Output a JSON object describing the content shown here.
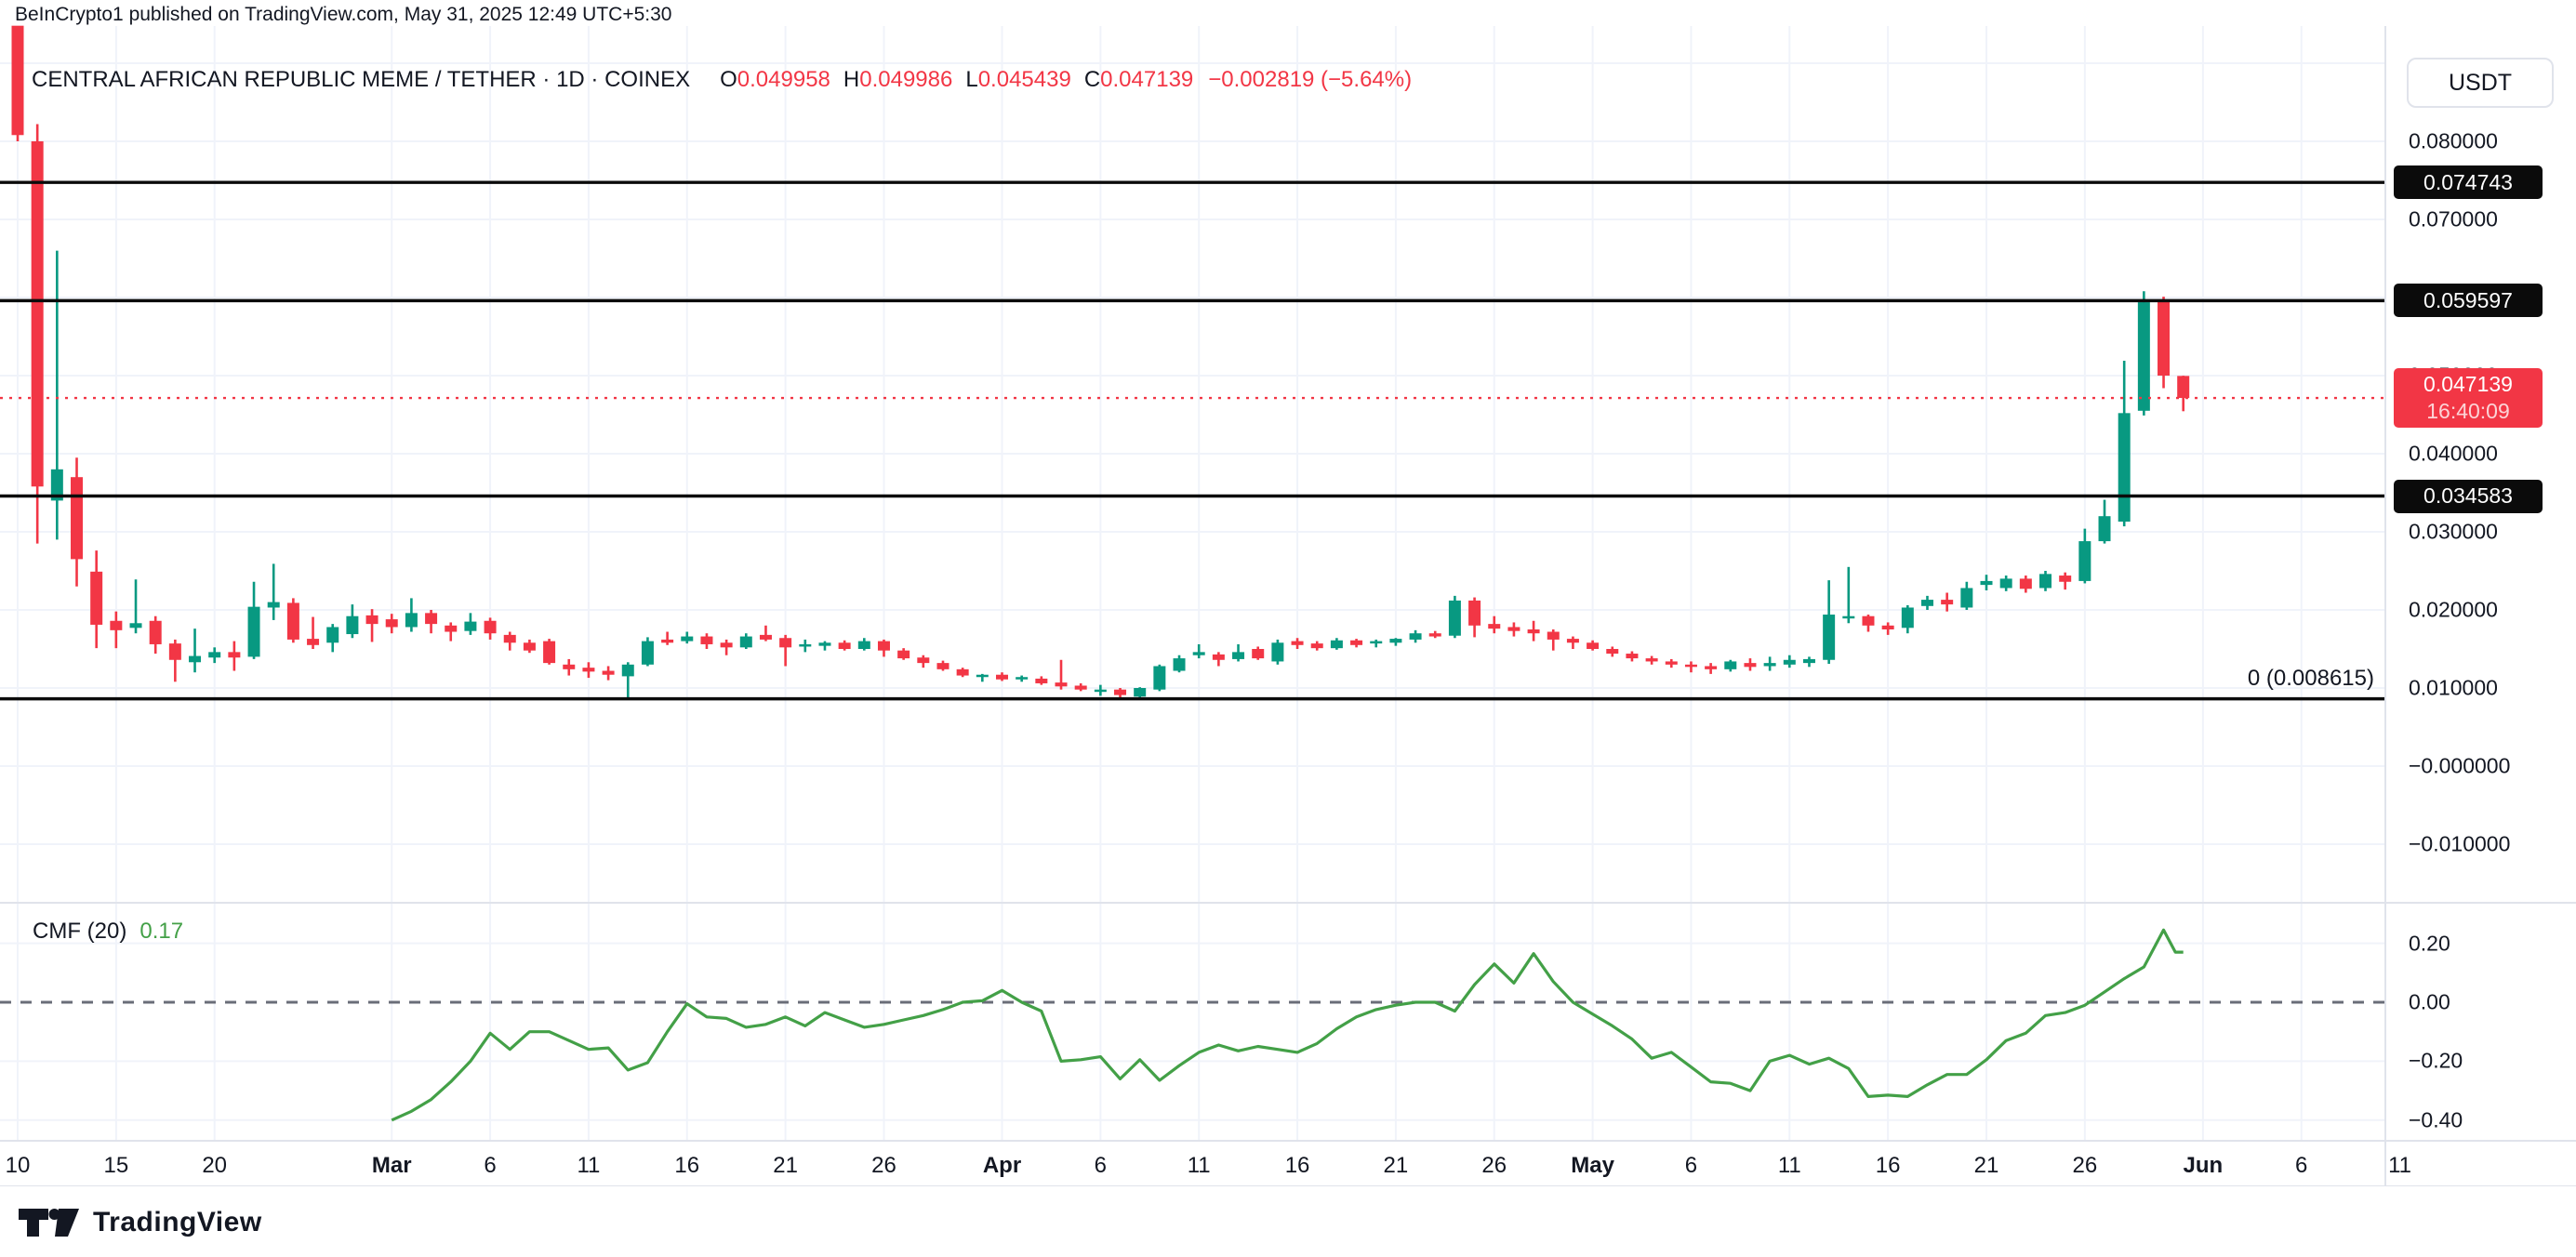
{
  "header": {
    "attribution": "BeInCrypto1 published on TradingView.com, May 31, 2025 12:49 UTC+5:30"
  },
  "symbol_bar": {
    "title": "CENTRAL AFRICAN REPUBLIC MEME / TETHER · 1D · COINEX",
    "o_label": "O",
    "o_value": "0.049958",
    "h_label": "H",
    "h_value": "0.049986",
    "l_label": "L",
    "l_value": "0.045439",
    "c_label": "C",
    "c_value": "0.047139",
    "change": "−0.002819 (−5.64%)"
  },
  "legend": {
    "cmf_label": "CMF (20)",
    "cmf_value": "0.17"
  },
  "price_axis": {
    "currency_button": "USDT",
    "ticks": [
      {
        "label": "0.080000",
        "p": 0.08
      },
      {
        "label": "0.070000",
        "p": 0.07
      },
      {
        "label": "0.050000",
        "p": 0.05
      },
      {
        "label": "0.040000",
        "p": 0.04
      },
      {
        "label": "0.030000",
        "p": 0.03
      },
      {
        "label": "0.020000",
        "p": 0.02
      },
      {
        "label": "0.010000",
        "p": 0.01
      },
      {
        "label": "−0.000000",
        "p": 0.0
      },
      {
        "label": "−0.010000",
        "p": -0.01
      }
    ],
    "cmf_ticks": [
      {
        "label": "0.20",
        "v": 0.2
      },
      {
        "label": "0.00",
        "v": 0.0
      },
      {
        "label": "−0.20",
        "v": -0.2
      },
      {
        "label": "−0.40",
        "v": -0.4
      }
    ]
  },
  "time_axis": {
    "ticks": [
      {
        "i": 0,
        "label": "10"
      },
      {
        "i": 5,
        "label": "15"
      },
      {
        "i": 10,
        "label": "20"
      },
      {
        "i": 19,
        "label": "Mar",
        "bold": true
      },
      {
        "i": 24,
        "label": "6"
      },
      {
        "i": 29,
        "label": "11"
      },
      {
        "i": 34,
        "label": "16"
      },
      {
        "i": 39,
        "label": "21"
      },
      {
        "i": 44,
        "label": "26"
      },
      {
        "i": 50,
        "label": "Apr",
        "bold": true
      },
      {
        "i": 55,
        "label": "6"
      },
      {
        "i": 60,
        "label": "11"
      },
      {
        "i": 65,
        "label": "16"
      },
      {
        "i": 70,
        "label": "21"
      },
      {
        "i": 75,
        "label": "26"
      },
      {
        "i": 80,
        "label": "May",
        "bold": true
      },
      {
        "i": 85,
        "label": "6"
      },
      {
        "i": 90,
        "label": "11"
      },
      {
        "i": 95,
        "label": "16"
      },
      {
        "i": 100,
        "label": "21"
      },
      {
        "i": 105,
        "label": "26"
      },
      {
        "i": 111,
        "label": "Jun",
        "bold": true
      },
      {
        "i": 116,
        "label": "6"
      },
      {
        "i": 121,
        "label": "11"
      }
    ]
  },
  "footer": {
    "logo_text": "TradingView"
  },
  "colors": {
    "up": "#089981",
    "down": "#F23645",
    "cmf_line": "#43A047",
    "grid": "#F0F3FA",
    "border": "#E0E3EB",
    "text": "#131722",
    "level_line": "#0b0b0b",
    "zero_dash": "#6A6D78",
    "current_dotted": "#F23645"
  },
  "chart_data": {
    "type": "candlestick",
    "title": "CENTRAL AFRICAN REPUBLIC MEME / TETHER",
    "interval": "1D",
    "exchange": "COINEX",
    "x_start_date": "Feb 10, 2025",
    "x_end_date": "May 31, 2025",
    "ylim": [
      -0.015,
      0.0948
    ],
    "grid": true,
    "horizontal_levels": [
      {
        "label": "0.074743",
        "p": 0.074743,
        "badge": true
      },
      {
        "label": "0.059597",
        "p": 0.059597,
        "badge": true
      },
      {
        "label": "0.034583",
        "p": 0.034583,
        "badge": true
      },
      {
        "label": "0 (0.008615)",
        "p": 0.008615,
        "badge": false
      }
    ],
    "current_price": {
      "label": "0.047139",
      "p": 0.047139,
      "countdown": "16:40:09"
    },
    "candles_ohlc": [
      [
        0.0948,
        0.0948,
        0.08,
        0.0808
      ],
      [
        0.08,
        0.0822,
        0.0285,
        0.0358
      ],
      [
        0.034,
        0.066,
        0.029,
        0.038
      ],
      [
        0.037,
        0.0395,
        0.023,
        0.0265
      ],
      [
        0.0249,
        0.0276,
        0.0151,
        0.0181
      ],
      [
        0.0186,
        0.0198,
        0.0151,
        0.0174
      ],
      [
        0.0177,
        0.0239,
        0.017,
        0.0183
      ],
      [
        0.0186,
        0.0192,
        0.0144,
        0.0156
      ],
      [
        0.0157,
        0.0162,
        0.0108,
        0.0136
      ],
      [
        0.0133,
        0.0176,
        0.012,
        0.0141
      ],
      [
        0.0139,
        0.0152,
        0.0132,
        0.0146
      ],
      [
        0.0146,
        0.016,
        0.0122,
        0.0139
      ],
      [
        0.014,
        0.0236,
        0.0137,
        0.0204
      ],
      [
        0.0203,
        0.0259,
        0.0187,
        0.021
      ],
      [
        0.0209,
        0.0215,
        0.0158,
        0.0162
      ],
      [
        0.0163,
        0.0191,
        0.015,
        0.0155
      ],
      [
        0.0158,
        0.0182,
        0.0146,
        0.0178
      ],
      [
        0.0169,
        0.0207,
        0.0164,
        0.0192
      ],
      [
        0.0193,
        0.0201,
        0.0159,
        0.0182
      ],
      [
        0.0188,
        0.0195,
        0.017,
        0.0178
      ],
      [
        0.0178,
        0.0215,
        0.0172,
        0.0196
      ],
      [
        0.0196,
        0.02,
        0.017,
        0.0182
      ],
      [
        0.018,
        0.0184,
        0.016,
        0.0172
      ],
      [
        0.0173,
        0.0196,
        0.0168,
        0.0185
      ],
      [
        0.0186,
        0.019,
        0.0162,
        0.017
      ],
      [
        0.0168,
        0.0172,
        0.0148,
        0.0158
      ],
      [
        0.0158,
        0.0162,
        0.0145,
        0.0148
      ],
      [
        0.016,
        0.0163,
        0.013,
        0.0132
      ],
      [
        0.013,
        0.0137,
        0.0116,
        0.0124
      ],
      [
        0.0126,
        0.0133,
        0.0113,
        0.0121
      ],
      [
        0.0122,
        0.0128,
        0.011,
        0.0117
      ],
      [
        0.0115,
        0.0133,
        0.0086,
        0.013
      ],
      [
        0.013,
        0.0165,
        0.0128,
        0.016
      ],
      [
        0.0162,
        0.0172,
        0.0155,
        0.0158
      ],
      [
        0.016,
        0.0172,
        0.0157,
        0.0166
      ],
      [
        0.0166,
        0.017,
        0.015,
        0.0156
      ],
      [
        0.0158,
        0.0162,
        0.0142,
        0.0152
      ],
      [
        0.0152,
        0.017,
        0.015,
        0.0166
      ],
      [
        0.0168,
        0.018,
        0.016,
        0.0162
      ],
      [
        0.0164,
        0.0168,
        0.0128,
        0.0152
      ],
      [
        0.0153,
        0.0162,
        0.0146,
        0.0156
      ],
      [
        0.0154,
        0.016,
        0.0148,
        0.0158
      ],
      [
        0.0158,
        0.0161,
        0.0148,
        0.015
      ],
      [
        0.015,
        0.0164,
        0.0148,
        0.016
      ],
      [
        0.016,
        0.0162,
        0.014,
        0.0148
      ],
      [
        0.0148,
        0.0151,
        0.0136,
        0.0138
      ],
      [
        0.0139,
        0.0142,
        0.0126,
        0.0132
      ],
      [
        0.0132,
        0.0135,
        0.0122,
        0.0124
      ],
      [
        0.0124,
        0.0126,
        0.0114,
        0.0116
      ],
      [
        0.0114,
        0.0118,
        0.0108,
        0.0117
      ],
      [
        0.0117,
        0.012,
        0.0109,
        0.0111
      ],
      [
        0.0111,
        0.0116,
        0.0108,
        0.0114
      ],
      [
        0.0112,
        0.0115,
        0.0104,
        0.0106
      ],
      [
        0.0107,
        0.0136,
        0.0098,
        0.0102
      ],
      [
        0.0103,
        0.0106,
        0.0096,
        0.0098
      ],
      [
        0.0096,
        0.0104,
        0.009,
        0.0098
      ],
      [
        0.0098,
        0.01,
        0.0088,
        0.0091
      ],
      [
        0.0089,
        0.0101,
        0.0085,
        0.01
      ],
      [
        0.0098,
        0.013,
        0.0096,
        0.0128
      ],
      [
        0.0122,
        0.0142,
        0.012,
        0.0138
      ],
      [
        0.0142,
        0.0156,
        0.0138,
        0.0146
      ],
      [
        0.0143,
        0.0146,
        0.0128,
        0.0136
      ],
      [
        0.0137,
        0.0156,
        0.0134,
        0.0146
      ],
      [
        0.015,
        0.0153,
        0.0136,
        0.0138
      ],
      [
        0.0134,
        0.0162,
        0.013,
        0.0158
      ],
      [
        0.016,
        0.0164,
        0.015,
        0.0155
      ],
      [
        0.0157,
        0.016,
        0.0148,
        0.0151
      ],
      [
        0.0151,
        0.0164,
        0.0149,
        0.0161
      ],
      [
        0.0161,
        0.0163,
        0.0152,
        0.0155
      ],
      [
        0.0157,
        0.0162,
        0.0152,
        0.016
      ],
      [
        0.0158,
        0.0164,
        0.0154,
        0.0163
      ],
      [
        0.0162,
        0.0174,
        0.0158,
        0.017
      ],
      [
        0.017,
        0.0173,
        0.0164,
        0.0166
      ],
      [
        0.0167,
        0.0218,
        0.0164,
        0.0212
      ],
      [
        0.0212,
        0.0216,
        0.0165,
        0.018
      ],
      [
        0.0182,
        0.0192,
        0.017,
        0.0176
      ],
      [
        0.0178,
        0.0184,
        0.0166,
        0.0173
      ],
      [
        0.0175,
        0.0186,
        0.016,
        0.017
      ],
      [
        0.0172,
        0.0175,
        0.0148,
        0.0162
      ],
      [
        0.0163,
        0.0166,
        0.015,
        0.0158
      ],
      [
        0.0158,
        0.0161,
        0.0148,
        0.015
      ],
      [
        0.015,
        0.0153,
        0.014,
        0.0144
      ],
      [
        0.0144,
        0.0147,
        0.0134,
        0.0138
      ],
      [
        0.0138,
        0.0141,
        0.013,
        0.0134
      ],
      [
        0.0134,
        0.0137,
        0.0126,
        0.013
      ],
      [
        0.013,
        0.0134,
        0.012,
        0.0127
      ],
      [
        0.0128,
        0.0132,
        0.0118,
        0.0124
      ],
      [
        0.0124,
        0.0136,
        0.0121,
        0.0134
      ],
      [
        0.0132,
        0.0138,
        0.0122,
        0.0127
      ],
      [
        0.0128,
        0.014,
        0.0122,
        0.0132
      ],
      [
        0.013,
        0.0142,
        0.0126,
        0.0136
      ],
      [
        0.0132,
        0.014,
        0.0127,
        0.0137
      ],
      [
        0.0136,
        0.0238,
        0.0131,
        0.0194
      ],
      [
        0.019,
        0.0255,
        0.0183,
        0.0192
      ],
      [
        0.0192,
        0.0194,
        0.0172,
        0.018
      ],
      [
        0.018,
        0.0184,
        0.0168,
        0.0175
      ],
      [
        0.0177,
        0.0206,
        0.017,
        0.0203
      ],
      [
        0.0205,
        0.0218,
        0.02,
        0.0213
      ],
      [
        0.0213,
        0.0222,
        0.0198,
        0.0207
      ],
      [
        0.0203,
        0.0236,
        0.02,
        0.0228
      ],
      [
        0.0232,
        0.0245,
        0.0225,
        0.0237
      ],
      [
        0.0228,
        0.0244,
        0.0224,
        0.024
      ],
      [
        0.024,
        0.0244,
        0.0222,
        0.0227
      ],
      [
        0.0228,
        0.025,
        0.0224,
        0.0246
      ],
      [
        0.0244,
        0.0248,
        0.0226,
        0.0236
      ],
      [
        0.0237,
        0.0304,
        0.0234,
        0.0288
      ],
      [
        0.0288,
        0.0341,
        0.0285,
        0.032
      ],
      [
        0.0313,
        0.0519,
        0.0307,
        0.0452
      ],
      [
        0.0455,
        0.0608,
        0.0449,
        0.0594
      ],
      [
        0.0596,
        0.0601,
        0.0484,
        0.05
      ],
      [
        0.049958,
        0.049986,
        0.045439,
        0.047139
      ]
    ],
    "cmf": {
      "name": "CMF (20)",
      "current": 0.17,
      "ylim": [
        -0.45,
        0.28
      ],
      "series": [
        [
          19,
          -0.4
        ],
        [
          20,
          -0.37
        ],
        [
          21,
          -0.33
        ],
        [
          22,
          -0.27
        ],
        [
          23,
          -0.2
        ],
        [
          24,
          -0.105
        ],
        [
          25,
          -0.16
        ],
        [
          26,
          -0.1
        ],
        [
          27,
          -0.1
        ],
        [
          28,
          -0.13
        ],
        [
          29,
          -0.16
        ],
        [
          30,
          -0.155
        ],
        [
          31,
          -0.23
        ],
        [
          32,
          -0.205
        ],
        [
          33,
          -0.1
        ],
        [
          34,
          -0.005
        ],
        [
          35,
          -0.05
        ],
        [
          36,
          -0.055
        ],
        [
          37,
          -0.085
        ],
        [
          38,
          -0.075
        ],
        [
          39,
          -0.05
        ],
        [
          40,
          -0.08
        ],
        [
          41,
          -0.035
        ],
        [
          42,
          -0.06
        ],
        [
          43,
          -0.085
        ],
        [
          44,
          -0.075
        ],
        [
          45,
          -0.06
        ],
        [
          46,
          -0.045
        ],
        [
          47,
          -0.025
        ],
        [
          48,
          0.0
        ],
        [
          49,
          0.005
        ],
        [
          50,
          0.04
        ],
        [
          51,
          0.0
        ],
        [
          52,
          -0.03
        ],
        [
          53,
          -0.2
        ],
        [
          54,
          -0.195
        ],
        [
          55,
          -0.185
        ],
        [
          56,
          -0.26
        ],
        [
          57,
          -0.195
        ],
        [
          58,
          -0.265
        ],
        [
          59,
          -0.215
        ],
        [
          60,
          -0.17
        ],
        [
          61,
          -0.145
        ],
        [
          62,
          -0.165
        ],
        [
          63,
          -0.15
        ],
        [
          64,
          -0.16
        ],
        [
          65,
          -0.17
        ],
        [
          66,
          -0.14
        ],
        [
          67,
          -0.09
        ],
        [
          68,
          -0.05
        ],
        [
          69,
          -0.025
        ],
        [
          70,
          -0.01
        ],
        [
          71,
          0.0
        ],
        [
          72,
          0.0
        ],
        [
          73,
          -0.03
        ],
        [
          74,
          0.06
        ],
        [
          75,
          0.13
        ],
        [
          76,
          0.065
        ],
        [
          77,
          0.165
        ],
        [
          78,
          0.07
        ],
        [
          79,
          0.0
        ],
        [
          80,
          -0.04
        ],
        [
          81,
          -0.08
        ],
        [
          82,
          -0.125
        ],
        [
          83,
          -0.19
        ],
        [
          84,
          -0.17
        ],
        [
          85,
          -0.22
        ],
        [
          86,
          -0.27
        ],
        [
          87,
          -0.275
        ],
        [
          88,
          -0.3
        ],
        [
          89,
          -0.2
        ],
        [
          90,
          -0.18
        ],
        [
          91,
          -0.21
        ],
        [
          92,
          -0.19
        ],
        [
          93,
          -0.225
        ],
        [
          94,
          -0.32
        ],
        [
          95,
          -0.315
        ],
        [
          96,
          -0.32
        ],
        [
          97,
          -0.28
        ],
        [
          98,
          -0.245
        ],
        [
          99,
          -0.245
        ],
        [
          100,
          -0.195
        ],
        [
          101,
          -0.13
        ],
        [
          102,
          -0.105
        ],
        [
          103,
          -0.045
        ],
        [
          104,
          -0.035
        ],
        [
          105,
          -0.01
        ],
        [
          106,
          0.035
        ],
        [
          107,
          0.08
        ],
        [
          108,
          0.12
        ],
        [
          109,
          0.245
        ],
        [
          109.6,
          0.17
        ],
        [
          110,
          0.17
        ]
      ]
    }
  }
}
